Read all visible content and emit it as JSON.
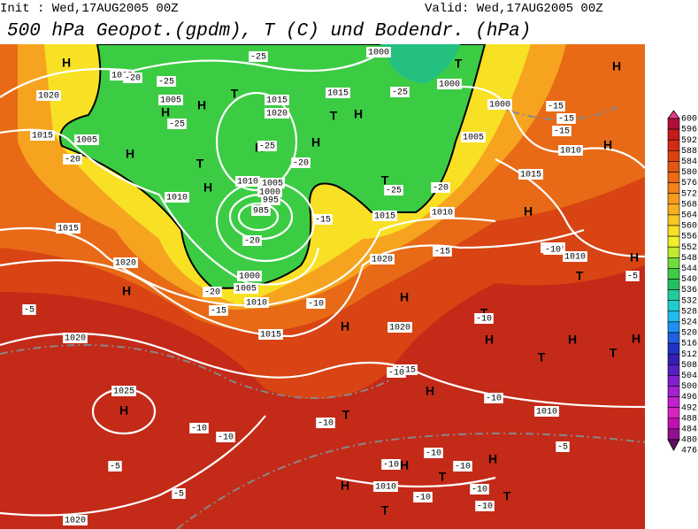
{
  "header": {
    "init": "Init : Wed,17AUG2005 00Z",
    "valid": "Valid: Wed,17AUG2005 00Z",
    "title": "500 hPa Geopot.(gpdm), T (C) und Bodendr. (hPa)"
  },
  "legend": {
    "labels": [
      600,
      596,
      592,
      588,
      584,
      580,
      576,
      572,
      568,
      564,
      560,
      556,
      552,
      548,
      544,
      540,
      536,
      532,
      528,
      524,
      520,
      516,
      512,
      508,
      504,
      500,
      496,
      492,
      488,
      484,
      480,
      476
    ],
    "colors": [
      "#e83a8a",
      "#b01038",
      "#c41a1a",
      "#d22c12",
      "#da4212",
      "#e25614",
      "#ea6a16",
      "#f2821a",
      "#f89a1e",
      "#f8b020",
      "#f8c822",
      "#f8e024",
      "#f0f028",
      "#c0ec30",
      "#70dc40",
      "#40cc44",
      "#24c060",
      "#20cc9c",
      "#20cccc",
      "#20bcf0",
      "#2090f0",
      "#2060e0",
      "#2034c4",
      "#3420b0",
      "#5420c0",
      "#8020d0",
      "#a420d0",
      "#c420d0",
      "#d424c0",
      "#c010b0",
      "#901090",
      "#601060"
    ]
  },
  "map": {
    "labels": [
      "H",
      "H",
      "H",
      "H",
      "H",
      "H",
      "H",
      "H",
      "H",
      "H",
      "H",
      "H",
      "H",
      "H",
      "H",
      "H",
      "H",
      "H",
      "H",
      "H",
      "H",
      "H",
      "H",
      "T",
      "T",
      "T",
      "T",
      "T",
      "T",
      "T",
      "T",
      "T",
      "T",
      "T",
      "T",
      "T",
      "1020",
      "1005",
      "1010",
      "1005",
      "1015",
      "1015",
      "1010",
      "1020",
      "1015",
      "1020",
      "1010",
      "1005",
      "1000",
      "995",
      "985",
      "1000",
      "1005",
      "1010",
      "1015",
      "1020",
      "1025",
      "1020",
      "1000",
      "1000",
      "1005",
      "1000",
      "1015",
      "1015",
      "1020",
      "1010",
      "1020",
      "1015",
      "1010",
      "1010",
      "1010",
      "1015",
      "1010",
      "1010",
      "-25",
      "-25",
      "-20",
      "-25",
      "-20",
      "-25",
      "-25",
      "-20",
      "-25",
      "-20",
      "-15",
      "-20",
      "-20",
      "-15",
      "-10",
      "-15",
      "-10",
      "-15",
      "-15",
      "-15",
      "-5",
      "-5",
      "-10",
      "-5",
      "-10",
      "-10",
      "-10",
      "-10",
      "-10",
      "-5",
      "-5",
      "-10",
      "-10",
      "-10",
      "-10",
      "-10",
      "-10"
    ]
  }
}
